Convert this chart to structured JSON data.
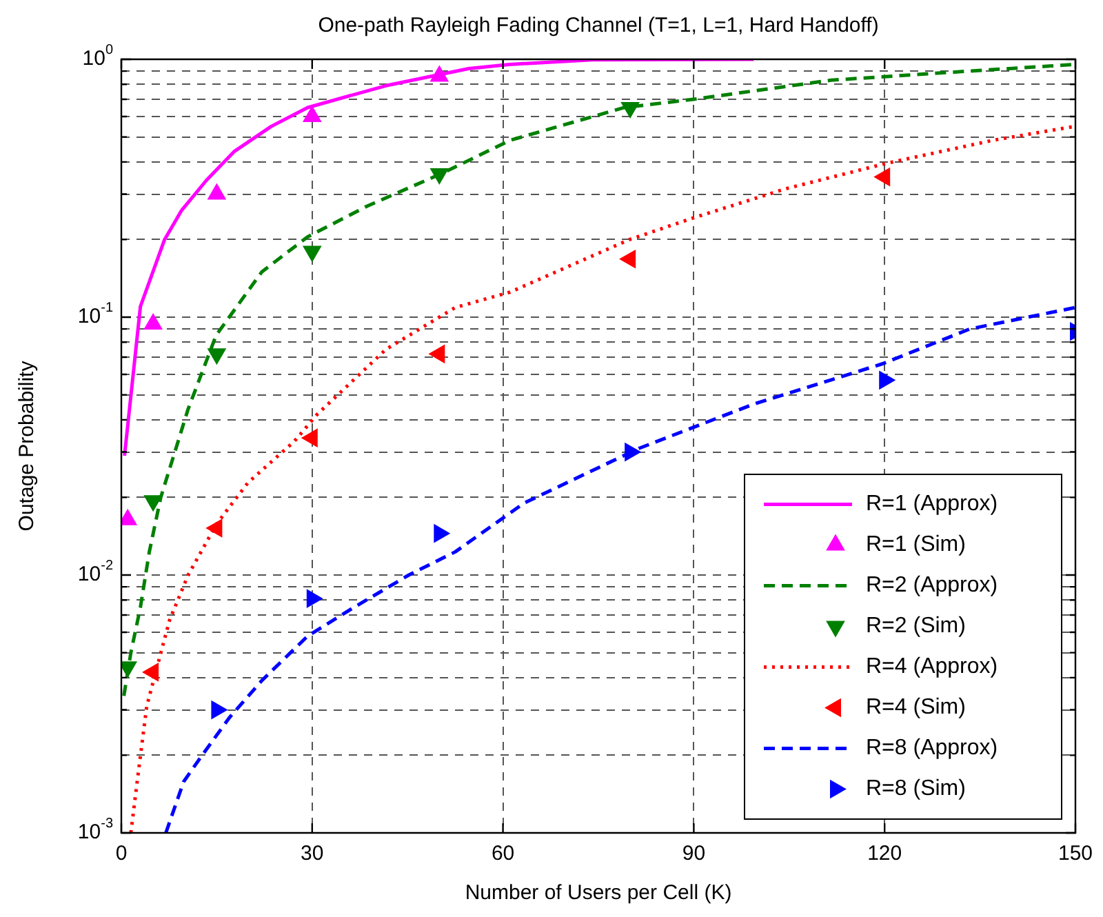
{
  "chart_data": {
    "type": "line",
    "title": "One-path Rayleigh Fading Channel (T=1, L=1, Hard Handoff)",
    "xlabel": "Number of Users per Cell (K)",
    "ylabel": "Outage Probability",
    "xlim": [
      0,
      150
    ],
    "xticks": [
      0,
      30,
      60,
      90,
      120,
      150
    ],
    "ylim": [
      0.001,
      1
    ],
    "log": "y",
    "yticks": [
      {
        "value": 0.001,
        "label": "10$^{-3}$"
      },
      {
        "value": 0.002,
        "label": null
      },
      {
        "value": 0.003,
        "label": null
      },
      {
        "value": 0.004,
        "label": null
      },
      {
        "value": 0.005,
        "label": null
      },
      {
        "value": 0.006,
        "label": null
      },
      {
        "value": 0.007,
        "label": null
      },
      {
        "value": 0.008,
        "label": null
      },
      {
        "value": 0.009,
        "label": null
      },
      {
        "value": 0.01,
        "label": "10$^{-2}$"
      },
      {
        "value": 0.02,
        "label": null
      },
      {
        "value": 0.03,
        "label": null
      },
      {
        "value": 0.04,
        "label": null
      },
      {
        "value": 0.05,
        "label": null
      },
      {
        "value": 0.06,
        "label": null
      },
      {
        "value": 0.07,
        "label": null
      },
      {
        "value": 0.08,
        "label": null
      },
      {
        "value": 0.09,
        "label": null
      },
      {
        "value": 0.1,
        "label": "10$^{-1}$"
      },
      {
        "value": 0.2,
        "label": null
      },
      {
        "value": 0.3,
        "label": null
      },
      {
        "value": 0.4,
        "label": null
      },
      {
        "value": 0.5,
        "label": null
      },
      {
        "value": 0.6,
        "label": null
      },
      {
        "value": 0.7,
        "label": null
      },
      {
        "value": 0.8,
        "label": null
      },
      {
        "value": 0.9,
        "label": null
      },
      {
        "value": 1,
        "label": "10$^{0}$"
      }
    ],
    "grid": true,
    "legend": "bottom right",
    "series": [
      {
        "name": "R=1 (Approx)",
        "color": "#ff00ff",
        "line_style": "solid",
        "marker": "none",
        "x": [
          0.5,
          3,
          6.8,
          9.5,
          13.4,
          17.8,
          23.6,
          29.3,
          41.6,
          54.6,
          61,
          74,
          99.4
        ],
        "values": [
          0.029,
          0.11,
          0.2,
          0.26,
          0.34,
          0.44,
          0.55,
          0.65,
          0.79,
          0.92,
          0.955,
          0.995,
          1
        ]
      },
      {
        "name": "R=1 (Sim)",
        "type": "scatter",
        "color": "#ff00ff",
        "marker": "triangle",
        "x": [
          1,
          5,
          15,
          30,
          50
        ],
        "values": [
          0.0164,
          0.094,
          0.3,
          0.6,
          0.86
        ]
      },
      {
        "name": "R=2 (Approx)",
        "color": "#008000",
        "line_style": "dashed",
        "marker": "none",
        "x": [
          0.4,
          1.5,
          3,
          4.4,
          6.2,
          10.5,
          14.9,
          22.1,
          29.3,
          38.7,
          50.3,
          61.1,
          79.1,
          90,
          111.6,
          133.3,
          150
        ],
        "values": [
          0.0034,
          0.005,
          0.0075,
          0.0123,
          0.02,
          0.044,
          0.085,
          0.15,
          0.205,
          0.27,
          0.36,
          0.485,
          0.65,
          0.7,
          0.83,
          0.9,
          0.955
        ]
      },
      {
        "name": "R=2 (Sim)",
        "type": "scatter",
        "color": "#008000",
        "marker": "triangle",
        "x": [
          1,
          5,
          15,
          30,
          50,
          80
        ],
        "values": [
          0.0044,
          0.0194,
          0.072,
          0.18,
          0.36,
          0.65
        ]
      },
      {
        "name": "R=4 (Approx)",
        "color": "#ff0000",
        "line_style": "dotted",
        "marker": "none",
        "x": [
          1.5,
          2.6,
          4,
          5.4,
          7.6,
          10.5,
          15,
          19.9,
          27.2,
          30.8,
          41.6,
          52.5,
          61.1,
          79.9,
          90,
          104.5,
          120.3,
          137,
          150
        ],
        "values": [
          0.001,
          0.00166,
          0.0031,
          0.0042,
          0.0067,
          0.01,
          0.0158,
          0.0228,
          0.033,
          0.042,
          0.075,
          0.109,
          0.125,
          0.2,
          0.243,
          0.315,
          0.395,
          0.485,
          0.55
        ]
      },
      {
        "name": "R=4 (Sim)",
        "type": "scatter",
        "color": "#ff0000",
        "marker": "triangle",
        "x": [
          5,
          15,
          30,
          50,
          80,
          120
        ],
        "values": [
          0.0042,
          0.0152,
          0.034,
          0.072,
          0.168,
          0.35
        ]
      },
      {
        "name": "R=8 (Approx)",
        "color": "#0000ff",
        "line_style": "dashed",
        "marker": "none",
        "x": [
          7,
          9.8,
          12.7,
          17,
          22.1,
          29.3,
          36.6,
          45.2,
          52.5,
          63.3,
          81.4,
          99.4,
          119.7,
          133.4,
          150
        ],
        "values": [
          0.001,
          0.00158,
          0.002,
          0.0028,
          0.0039,
          0.0058,
          0.0075,
          0.01,
          0.0123,
          0.019,
          0.031,
          0.046,
          0.066,
          0.09,
          0.109
        ]
      },
      {
        "name": "R=8 (Sim)",
        "type": "scatter",
        "color": "#0000ff",
        "marker": "triangle",
        "x": [
          15,
          30,
          50,
          80,
          120,
          150
        ],
        "values": [
          0.003,
          0.0081,
          0.0145,
          0.03,
          0.057,
          0.088
        ]
      }
    ]
  }
}
